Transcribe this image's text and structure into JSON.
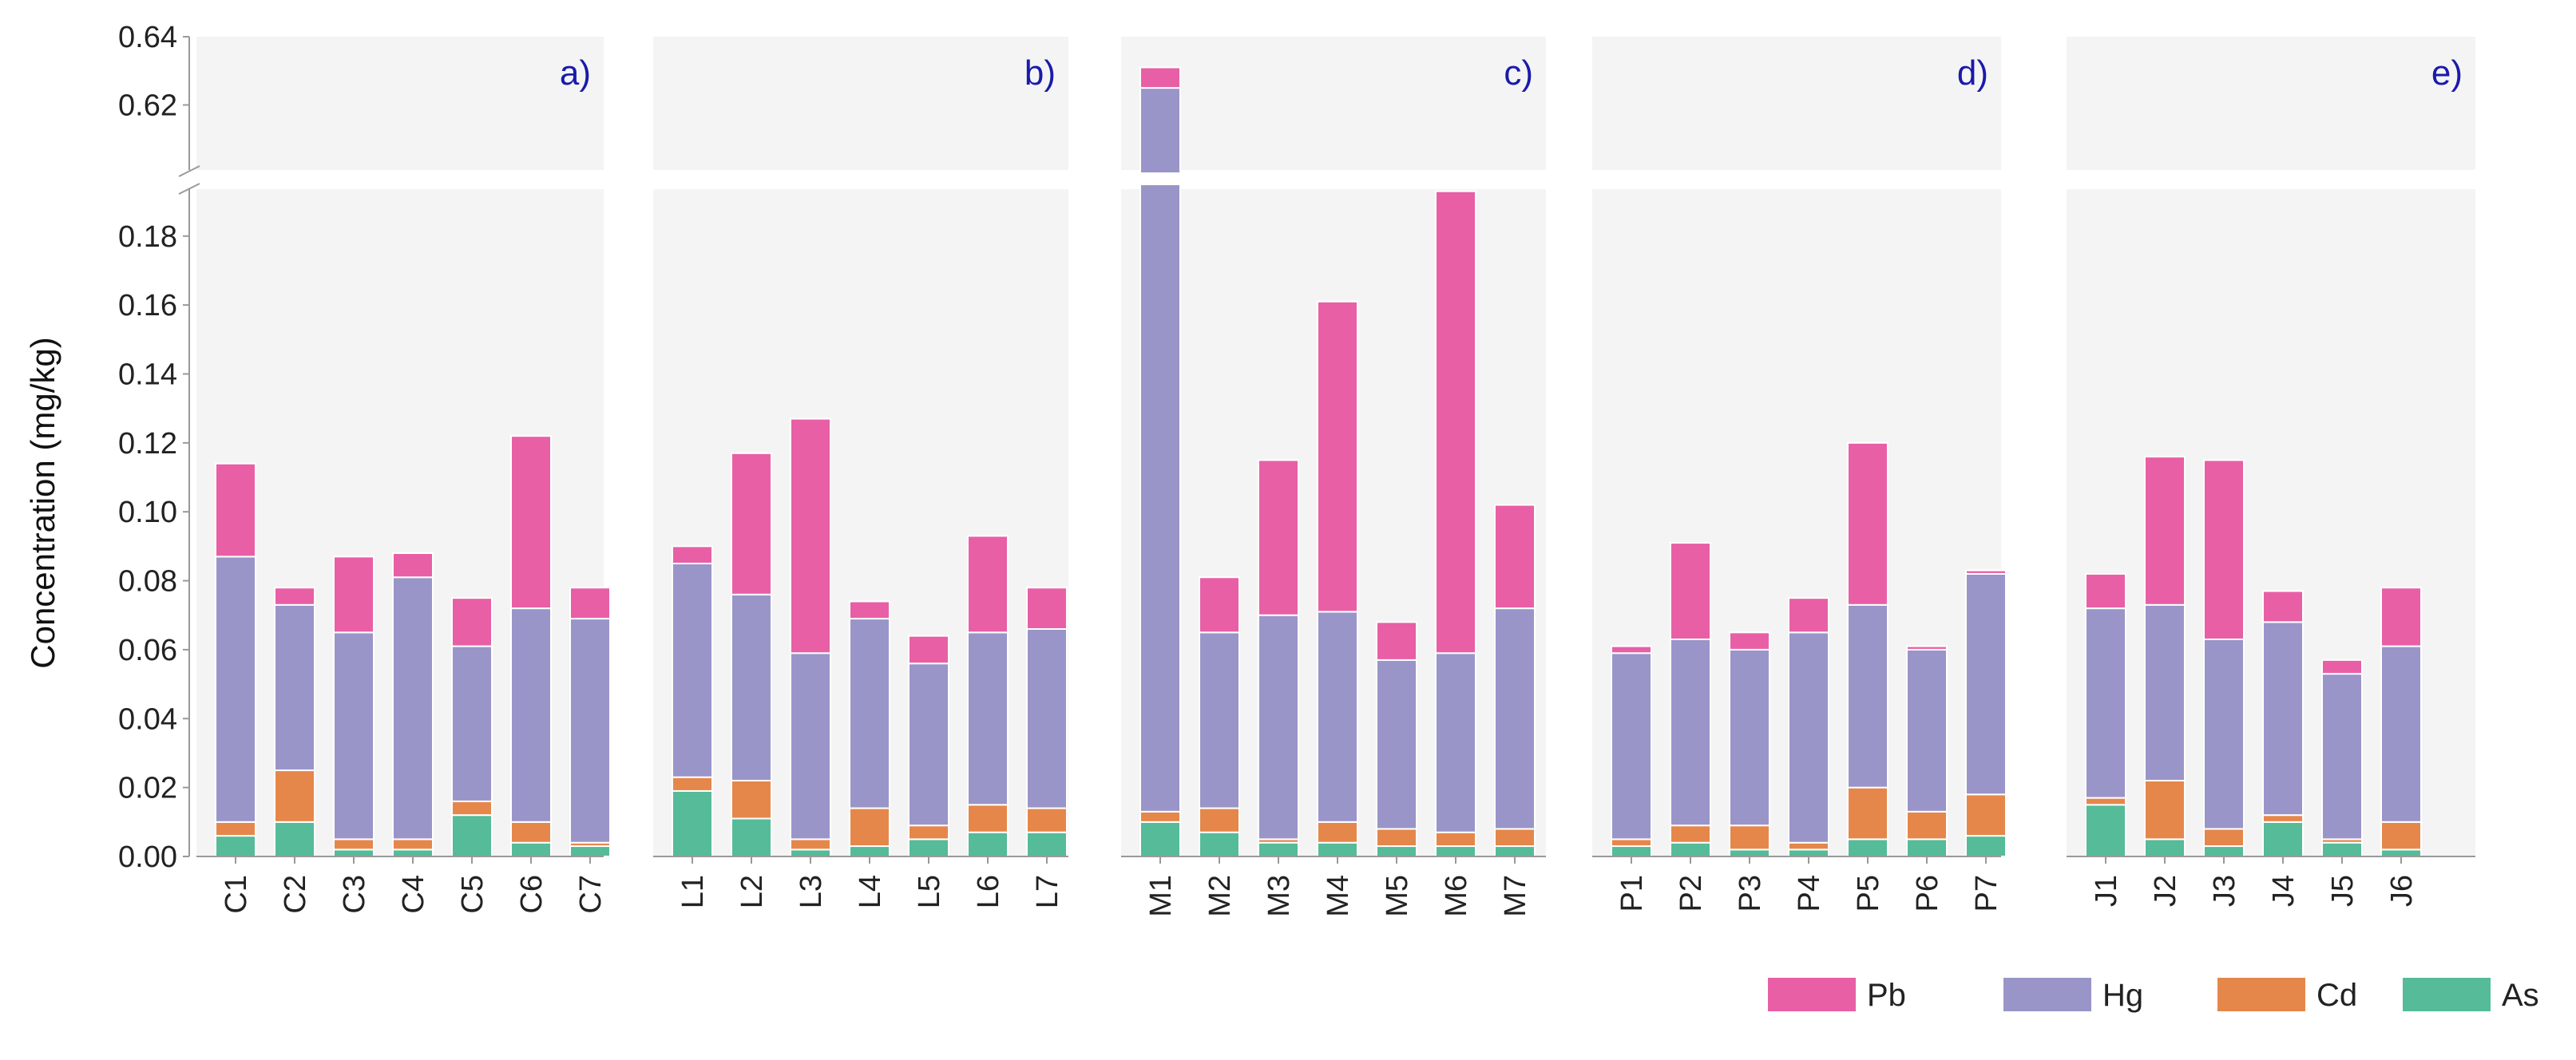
{
  "chart_data": {
    "type": "bar",
    "stacked": true,
    "ylabel": "Concentration (mg/kg)",
    "axis_break": true,
    "ylim_lower": [
      0,
      0.195
    ],
    "ylim_upper": [
      0.6,
      0.64
    ],
    "yticks_lower": [
      "0.00",
      "0.02",
      "0.04",
      "0.06",
      "0.08",
      "0.10",
      "0.12",
      "0.14",
      "0.16",
      "0.18"
    ],
    "yticks_upper": [
      "0.62",
      "0.64"
    ],
    "stack_order": [
      "As",
      "Cd",
      "Hg",
      "Pb"
    ],
    "colors": {
      "As": "#55bb99",
      "Cd": "#e5874a",
      "Hg": "#9995c8",
      "Pb": "#e85fa6"
    },
    "legend": [
      "Pb",
      "Hg",
      "Cd",
      "As"
    ],
    "legend_position": "bottom-right",
    "panels": [
      {
        "label": "a)",
        "categories": [
          "C1",
          "C2",
          "C3",
          "C4",
          "C5",
          "C6",
          "C7"
        ],
        "As": [
          0.006,
          0.01,
          0.002,
          0.002,
          0.012,
          0.004,
          0.003
        ],
        "Cd": [
          0.004,
          0.015,
          0.003,
          0.003,
          0.004,
          0.006,
          0.001
        ],
        "Hg": [
          0.077,
          0.048,
          0.06,
          0.076,
          0.045,
          0.062,
          0.065
        ],
        "Pb": [
          0.027,
          0.005,
          0.022,
          0.007,
          0.014,
          0.05,
          0.009
        ]
      },
      {
        "label": "b)",
        "categories": [
          "L1",
          "L2",
          "L3",
          "L4",
          "L5",
          "L6",
          "L7"
        ],
        "As": [
          0.019,
          0.011,
          0.002,
          0.003,
          0.005,
          0.007,
          0.007
        ],
        "Cd": [
          0.004,
          0.011,
          0.003,
          0.011,
          0.004,
          0.008,
          0.007
        ],
        "Hg": [
          0.062,
          0.054,
          0.054,
          0.055,
          0.047,
          0.05,
          0.052
        ],
        "Pb": [
          0.005,
          0.041,
          0.068,
          0.005,
          0.008,
          0.028,
          0.012
        ]
      },
      {
        "label": "c)",
        "categories": [
          "M1",
          "M2",
          "M3",
          "M4",
          "M5",
          "M6",
          "M7"
        ],
        "As": [
          0.01,
          0.007,
          0.004,
          0.004,
          0.003,
          0.003,
          0.003
        ],
        "Cd": [
          0.003,
          0.007,
          0.001,
          0.006,
          0.005,
          0.004,
          0.005
        ],
        "Hg": [
          0.612,
          0.051,
          0.065,
          0.061,
          0.049,
          0.052,
          0.064
        ],
        "Pb": [
          0.006,
          0.016,
          0.045,
          0.09,
          0.011,
          0.134,
          0.03
        ]
      },
      {
        "label": "d)",
        "categories": [
          "P1",
          "P2",
          "P3",
          "P4",
          "P5",
          "P6",
          "P7"
        ],
        "As": [
          0.003,
          0.004,
          0.002,
          0.002,
          0.005,
          0.005,
          0.006
        ],
        "Cd": [
          0.002,
          0.005,
          0.007,
          0.002,
          0.015,
          0.008,
          0.012
        ],
        "Hg": [
          0.054,
          0.054,
          0.051,
          0.061,
          0.053,
          0.047,
          0.064
        ],
        "Pb": [
          0.002,
          0.028,
          0.005,
          0.01,
          0.047,
          0.001,
          0.001
        ]
      },
      {
        "label": "e)",
        "categories": [
          "J1",
          "J2",
          "J3",
          "J4",
          "J5",
          "J6"
        ],
        "As": [
          0.015,
          0.005,
          0.003,
          0.01,
          0.004,
          0.002
        ],
        "Cd": [
          0.002,
          0.017,
          0.005,
          0.002,
          0.001,
          0.008
        ],
        "Hg": [
          0.055,
          0.051,
          0.055,
          0.056,
          0.048,
          0.051
        ],
        "Pb": [
          0.01,
          0.043,
          0.052,
          0.009,
          0.004,
          0.017
        ]
      }
    ]
  }
}
